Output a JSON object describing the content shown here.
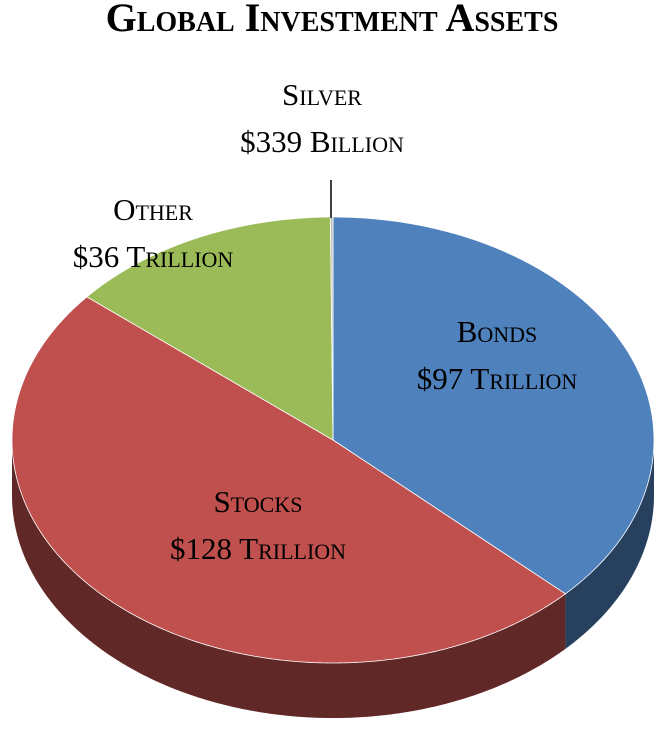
{
  "chart_data": {
    "type": "pie",
    "title": "Global Investment Assets",
    "categories": [
      "Bonds",
      "Stocks",
      "Other",
      "Silver"
    ],
    "values": [
      97,
      128,
      36,
      0.339
    ],
    "value_labels": [
      "$97 Trillion",
      "$128 Trillion",
      "$36 Trillion",
      "$339 Billion"
    ],
    "colors": [
      "#4f81bd",
      "#c0504d",
      "#9bbb59",
      "#bfbfbf"
    ]
  }
}
